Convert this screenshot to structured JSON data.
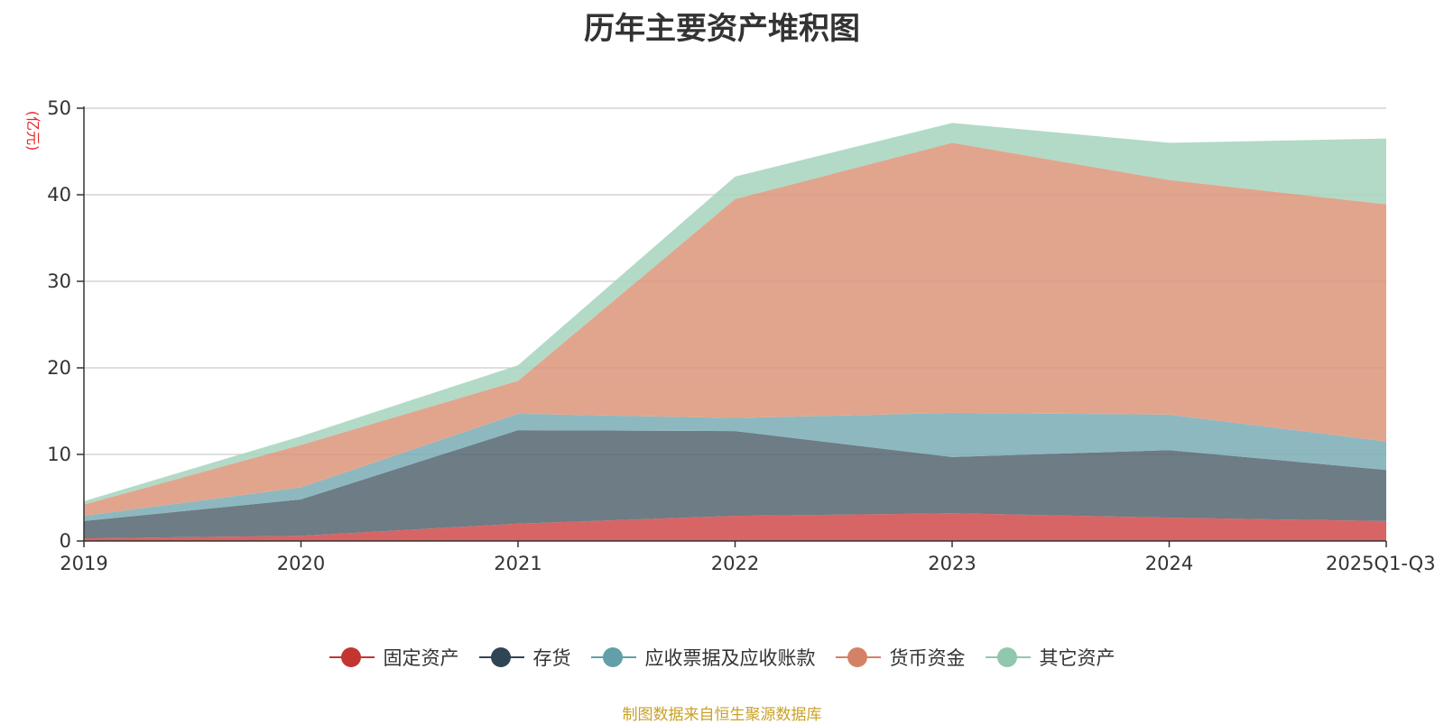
{
  "title": "历年主要资产堆积图",
  "source_note": "制图数据来自恒生聚源数据库",
  "colors": {
    "source_note": "#c9a227",
    "unit_label": "#e8262a",
    "axis": "#333333",
    "grid": "#cccccc"
  },
  "chart_data": {
    "type": "area",
    "stacked": true,
    "title": "历年主要资产堆积图",
    "ylabel": "(亿元)",
    "xlabel": "",
    "categories": [
      "2019",
      "2020",
      "2021",
      "2022",
      "2023",
      "2024",
      "2025Q1-Q3"
    ],
    "ylim": [
      0,
      50
    ],
    "yticks": [
      0,
      10,
      20,
      30,
      40,
      50
    ],
    "grid": true,
    "legend_position": "bottom",
    "series": [
      {
        "name": "固定资产",
        "color": "#d14a4a",
        "marker_color": "#c23531",
        "values": [
          0.3,
          0.6,
          2.0,
          2.9,
          3.2,
          2.7,
          2.3
        ]
      },
      {
        "name": "存货",
        "color": "#546570",
        "marker_color": "#2f4554",
        "values": [
          2.0,
          4.2,
          10.8,
          9.8,
          6.5,
          7.8,
          5.9
        ]
      },
      {
        "name": "应收票据及应收账款",
        "color": "#7aabb4",
        "marker_color": "#61a0a8",
        "values": [
          0.6,
          1.4,
          1.9,
          1.5,
          5.1,
          4.1,
          3.3
        ]
      },
      {
        "name": "货币资金",
        "color": "#dc957a",
        "marker_color": "#d48265",
        "values": [
          1.3,
          4.9,
          3.8,
          25.3,
          31.2,
          27.1,
          27.4
        ]
      },
      {
        "name": "其它资产",
        "color": "#a4d3bd",
        "marker_color": "#91c7ae",
        "values": [
          0.4,
          1.0,
          1.8,
          2.6,
          2.3,
          4.3,
          7.6
        ]
      }
    ]
  }
}
